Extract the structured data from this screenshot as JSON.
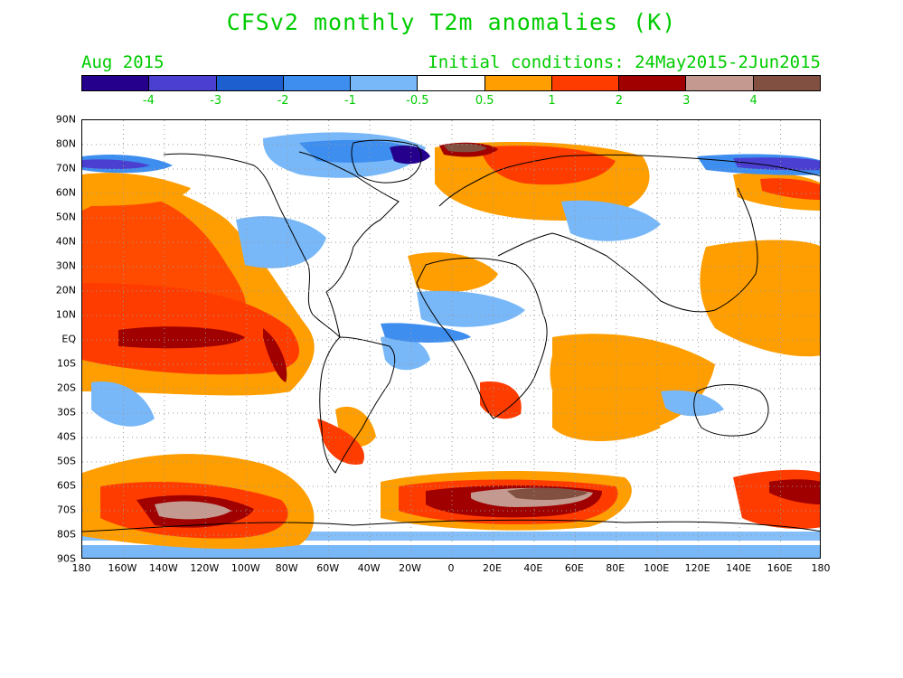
{
  "title": "CFSv2 monthly T2m anomalies (K)",
  "month": "Aug 2015",
  "initial_conditions": "Initial conditions: 24May2015-2Jun2015",
  "colorbar": {
    "colors": [
      "#24008c",
      "#4a3fd0",
      "#1e5fd0",
      "#3e8ef0",
      "#78b8f8",
      "#ffffff",
      "#ff9e00",
      "#ff3c00",
      "#a00000",
      "#c49a90",
      "#825040"
    ],
    "labels": [
      "-4",
      "-3",
      "-2",
      "-1",
      "-0.5",
      "0.5",
      "1",
      "2",
      "3",
      "4"
    ]
  },
  "y_ticks": [
    "90N",
    "80N",
    "70N",
    "60N",
    "50N",
    "40N",
    "30N",
    "20N",
    "10N",
    "EQ",
    "10S",
    "20S",
    "30S",
    "40S",
    "50S",
    "60S",
    "70S",
    "80S",
    "90S"
  ],
  "x_ticks": [
    "180",
    "160W",
    "140W",
    "120W",
    "100W",
    "80W",
    "60W",
    "40W",
    "20W",
    "0",
    "20E",
    "40E",
    "60E",
    "80E",
    "100E",
    "120E",
    "140E",
    "160E",
    "180"
  ],
  "chart_data": {
    "type": "heatmap",
    "title": "CFSv2 monthly T2m anomalies (K)",
    "variable": "2m temperature anomaly",
    "units": "K",
    "valid_month": "Aug 2015",
    "contour_levels": [
      -4,
      -3,
      -2,
      -1,
      -0.5,
      0.5,
      1,
      2,
      3,
      4
    ],
    "lon_range": [
      -180,
      180
    ],
    "lat_range": [
      -90,
      90
    ],
    "grid": true,
    "features": [
      {
        "region": "Equatorial East Pacific",
        "anomaly": "3+"
      },
      {
        "region": "Southern Ocean 40E",
        "anomaly": "4+"
      },
      {
        "region": "Southern Ocean 120W",
        "anomaly": "4+"
      },
      {
        "region": "Arctic north of Greenland",
        "anomaly": "-3 to -4"
      },
      {
        "region": "Antarctica interior",
        "anomaly": "-0.5 to -1"
      }
    ]
  }
}
